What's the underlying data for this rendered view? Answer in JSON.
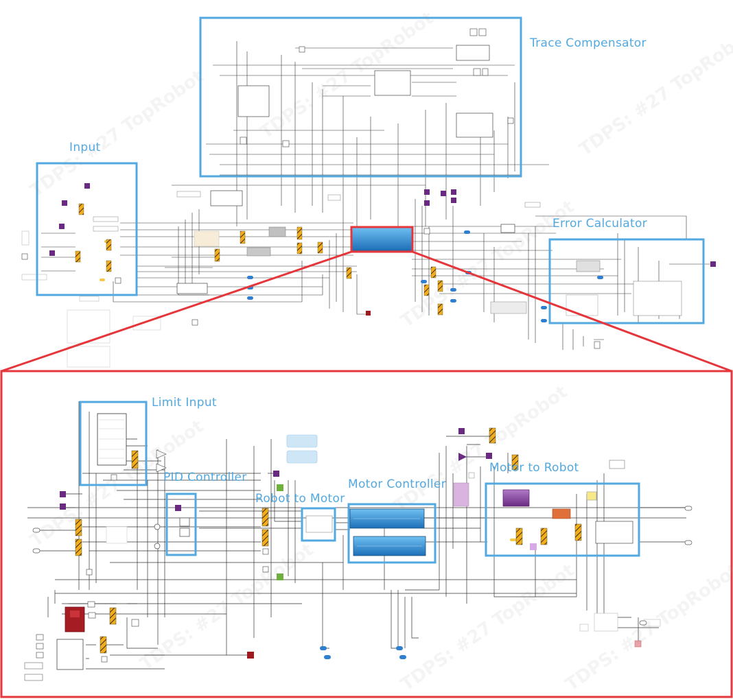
{
  "colors": {
    "callout_box": "#52a9e0",
    "zoom_frame": "#e5363b",
    "wire": "#222222",
    "mux_orange": "#f2ad1c",
    "port_purple": "#6a2a82",
    "port_blue": "#2f7fd0",
    "subsystem_blue": "#2f8fd8",
    "dark_red": "#9e1a1f"
  },
  "callouts": {
    "trace_compensator": "Trace Compensator",
    "input": "Input",
    "error_calculator": "Error Calculator",
    "limit_input": "Limit Input",
    "pid_controller": "PID Controller",
    "robot_to_motor": "Robot to Motor",
    "motor_controller": "Motor Controller",
    "motor_to_robot": "Motor to Robot"
  },
  "watermark": "TDPS: #27 TopRobot"
}
